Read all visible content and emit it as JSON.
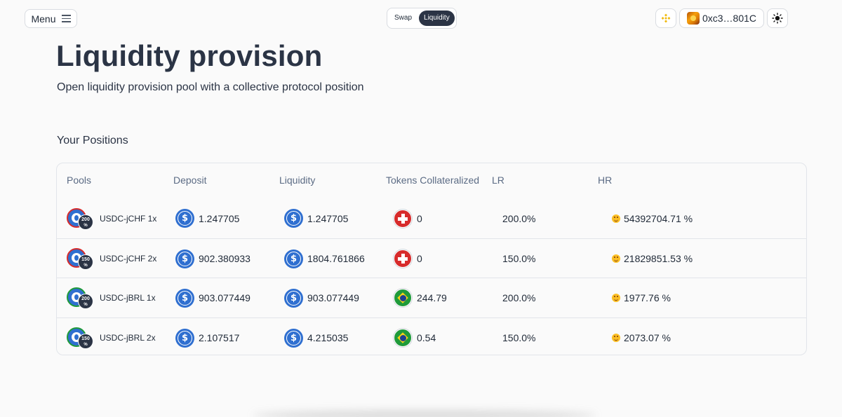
{
  "header": {
    "menu_label": "Menu",
    "tabs": [
      {
        "label": "Swap",
        "active": false
      },
      {
        "label": "Liquidity",
        "active": true
      }
    ],
    "chain_icon": "bnb-chain-icon",
    "wallet_address": "0xc3…801C",
    "theme_icon": "sun-icon"
  },
  "page": {
    "title": "Liquidity provision",
    "subtitle": "Open liquidity provision pool with a collective protocol position"
  },
  "positions": {
    "section_title": "Your Positions",
    "columns": [
      "Pools",
      "Deposit",
      "Liquidity",
      "Tokens Collateralized",
      "LR",
      "HR"
    ],
    "rows": [
      {
        "pool": "USDC-jCHF 1x",
        "pool_badge": "200",
        "pool_badge_unit": "%",
        "pool_token": "jCHF",
        "deposit": "1.247705",
        "liquidity": "1.247705",
        "collateral": "0",
        "collateral_token": "chf",
        "lr": "200.0%",
        "hr": "54392704.71 %"
      },
      {
        "pool": "USDC-jCHF 2x",
        "pool_badge": "150",
        "pool_badge_unit": "%",
        "pool_token": "jCHF",
        "deposit": "902.380933",
        "liquidity": "1804.761866",
        "collateral": "0",
        "collateral_token": "chf",
        "lr": "150.0%",
        "hr": "21829851.53 %"
      },
      {
        "pool": "USDC-jBRL 1x",
        "pool_badge": "200",
        "pool_badge_unit": "%",
        "pool_token": "jBRL",
        "deposit": "903.077449",
        "liquidity": "903.077449",
        "collateral": "244.79",
        "collateral_token": "brl",
        "lr": "200.0%",
        "hr": "1977.76 %"
      },
      {
        "pool": "USDC-jBRL 2x",
        "pool_badge": "150",
        "pool_badge_unit": "%",
        "pool_token": "jBRL",
        "deposit": "2.107517",
        "liquidity": "4.215035",
        "collateral": "0.54",
        "collateral_token": "brl",
        "lr": "150.0%",
        "hr": "2073.07 %"
      }
    ]
  },
  "colors": {
    "primary_dark": "#2b3445",
    "usdc_blue": "#2f6fd0",
    "chf_red": "#d72b2b",
    "brl_green": "#1f9a3a",
    "border": "#e2e5ea"
  }
}
